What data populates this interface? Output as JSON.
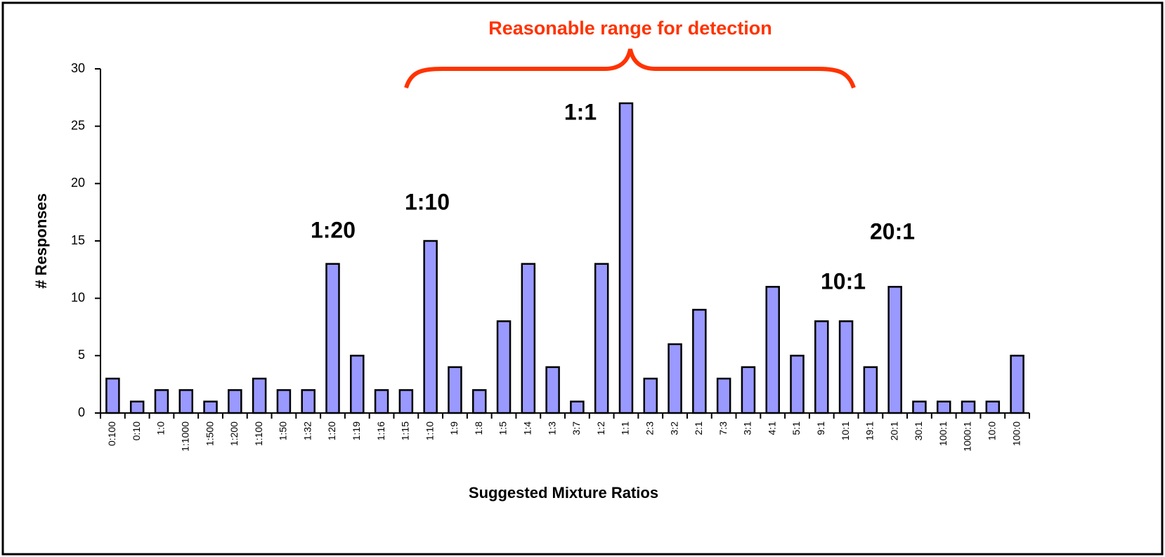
{
  "chart_data": {
    "type": "bar",
    "title": "Reasonable range for detection",
    "x_label": "Suggested Mixture Ratios",
    "y_label": "# Responses",
    "categories": [
      "0:100",
      "0:10",
      "1:0",
      "1:1000",
      "1:500",
      "1:200",
      "1:100",
      "1:50",
      "1:32",
      "1:20",
      "1:19",
      "1:16",
      "1:15",
      "1:10",
      "1:9",
      "1:8",
      "1:5",
      "1:4",
      "1:3",
      "3:7",
      "1:2",
      "1:1",
      "2:3",
      "3:2",
      "2:1",
      "7:3",
      "3:1",
      "4:1",
      "5:1",
      "9:1",
      "10:1",
      "19:1",
      "20:1",
      "30:1",
      "100:1",
      "1000:1",
      "10:0",
      "100:0"
    ],
    "values": [
      3,
      1,
      2,
      2,
      1,
      2,
      3,
      2,
      2,
      13,
      5,
      2,
      2,
      15,
      4,
      2,
      8,
      13,
      4,
      1,
      13,
      27,
      3,
      6,
      9,
      3,
      4,
      11,
      5,
      8,
      8,
      4,
      11,
      1,
      1,
      1,
      1,
      5
    ],
    "color": "#9999ff",
    "ylim": [
      0,
      30
    ],
    "yticks": [
      0,
      5,
      10,
      15,
      20,
      25,
      30
    ],
    "grid": false,
    "annotations": [
      "1:20",
      "1:10",
      "1:1",
      "10:1",
      "20:1"
    ]
  }
}
